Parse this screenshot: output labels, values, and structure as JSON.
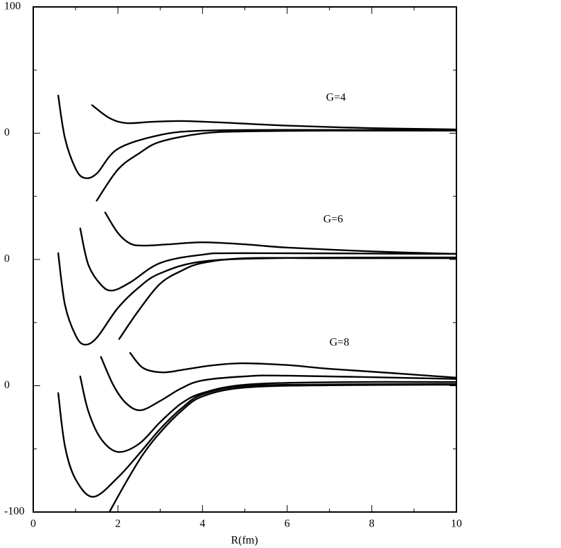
{
  "chart_data": {
    "type": "line",
    "xlabel": "R(fm)",
    "color": "#000000",
    "xlim": [
      0,
      10
    ],
    "ylim": [
      -100,
      100
    ],
    "xticks": [
      0,
      2,
      4,
      6,
      8,
      10
    ],
    "yticks": [
      -100,
      {
        "value": -50,
        "label": "0"
      },
      0,
      {
        "value": 50,
        "label": "0"
      },
      100
    ],
    "annotations": [
      "G=4",
      "G=6",
      "G=8"
    ],
    "series": [
      {
        "x": [
          1.39,
          1.8,
          2.2,
          2.8,
          3.5,
          4.5,
          6,
          8,
          10
        ],
        "values": [
          61.1,
          56,
          54,
          54.5,
          54.8,
          54.2,
          53,
          52,
          51.5
        ]
      },
      {
        "x": [
          0.59,
          0.75,
          1.0,
          1.21,
          1.5,
          2,
          3,
          4,
          6,
          10
        ],
        "values": [
          64.9,
          48,
          36,
          32.3,
          34,
          43.8,
          49.3,
          51,
          51.3,
          51.2
        ]
      },
      {
        "x": [
          1.5,
          2,
          2.5,
          3,
          4,
          5,
          7,
          10
        ],
        "values": [
          23.3,
          35.6,
          42,
          46.6,
          49.9,
          50.7,
          51,
          51
        ]
      },
      {
        "x": [
          1.7,
          2.0,
          2.29,
          2.6,
          3.2,
          4,
          5,
          6,
          8,
          10
        ],
        "values": [
          18.6,
          10.5,
          6.3,
          5.5,
          6,
          6.8,
          6,
          4.7,
          3.2,
          2.2
        ]
      },
      {
        "x": [
          1.11,
          1.3,
          1.6,
          1.87,
          2.3,
          3,
          4,
          5,
          10
        ],
        "values": [
          12.3,
          -2,
          -10,
          -12.3,
          -9,
          -1.4,
          1.9,
          2.5,
          2.2
        ]
      },
      {
        "x": [
          0.59,
          0.75,
          1.0,
          1.21,
          1.5,
          2,
          2.5,
          3,
          4,
          6,
          10
        ],
        "values": [
          2.5,
          -18,
          -30,
          -33.7,
          -31,
          -19.2,
          -11,
          -5.5,
          -0.8,
          0.6,
          0.8
        ]
      },
      {
        "x": [
          2.03,
          2.5,
          3,
          3.5,
          4,
          5,
          7,
          10
        ],
        "values": [
          -31.5,
          -20,
          -9.6,
          -4.5,
          -1.4,
          0.5,
          0.5,
          0.5
        ]
      },
      {
        "x": [
          2.29,
          2.6,
          3.06,
          3.6,
          4.2,
          4.9,
          6,
          7,
          8.5,
          10
        ],
        "values": [
          -37,
          -43,
          -44.7,
          -43.5,
          -42,
          -41.1,
          -41.8,
          -43.3,
          -45,
          -46.8
        ]
      },
      {
        "x": [
          1.6,
          1.9,
          2.2,
          2.54,
          3,
          3.5,
          4,
          5,
          6,
          10
        ],
        "values": [
          -38.6,
          -50,
          -57,
          -59.7,
          -56,
          -51,
          -47.9,
          -46.3,
          -46,
          -47.3
        ]
      },
      {
        "x": [
          1.11,
          1.3,
          1.6,
          2.0,
          2.5,
          3,
          3.5,
          4,
          5,
          7,
          10
        ],
        "values": [
          -46.3,
          -60,
          -71,
          -76.2,
          -73,
          -64.4,
          -57,
          -52.9,
          -49.6,
          -48.6,
          -48.5
        ]
      },
      {
        "x": [
          0.59,
          0.75,
          1.0,
          1.42,
          2,
          2.5,
          3,
          3.5,
          4,
          5,
          7,
          10
        ],
        "values": [
          -52.9,
          -74,
          -87,
          -94,
          -86.3,
          -77,
          -67.1,
          -59,
          -53.4,
          -50.1,
          -49.5,
          -49.3
        ]
      },
      {
        "x": [
          1.8,
          2.2,
          2.6,
          3,
          3.5,
          4,
          5,
          7,
          10
        ],
        "values": [
          -100,
          -88,
          -77,
          -68.5,
          -60,
          -54.2,
          -50.7,
          -49.8,
          -49.6
        ]
      }
    ]
  }
}
